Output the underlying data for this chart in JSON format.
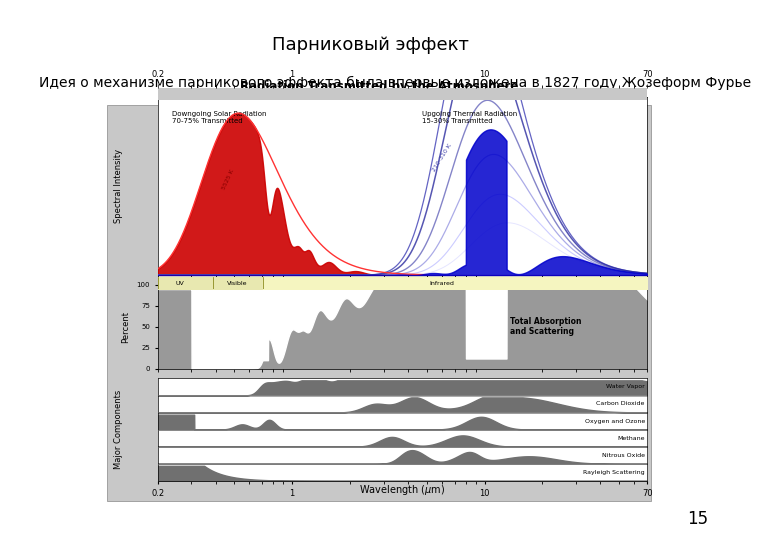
{
  "title": "Парниковый эффект",
  "subtitle": "Идея о механизме парникового эффекта была впервые изложена в 1827 году Жозеформ Фурье",
  "page_number": "15",
  "bg_color": "#ffffff",
  "title_fontsize": 13,
  "subtitle_fontsize": 10,
  "page_num_fontsize": 12
}
